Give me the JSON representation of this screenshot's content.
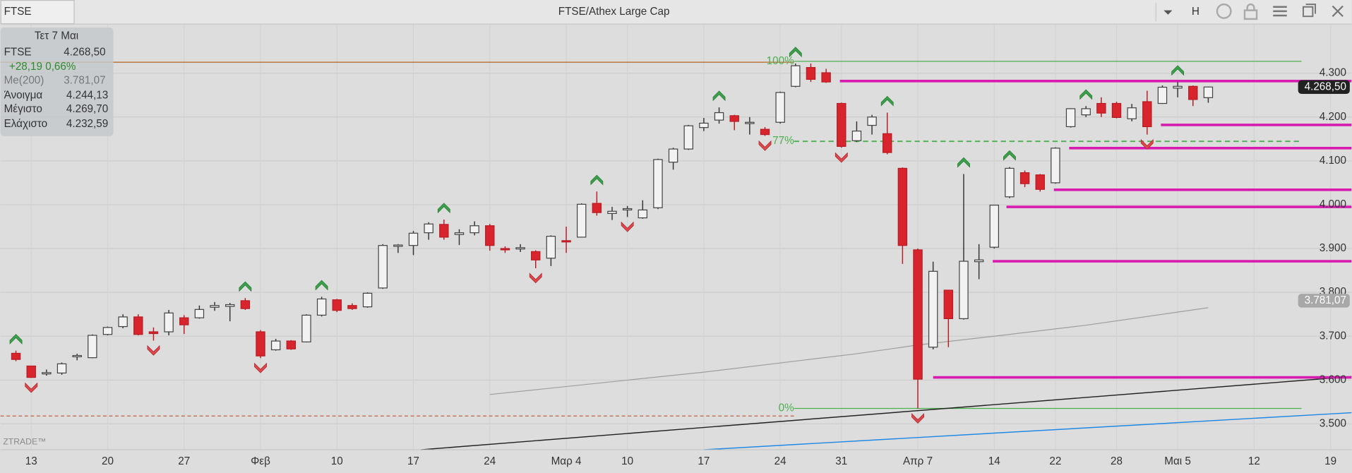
{
  "top_bar": {
    "symbol": "FTSE",
    "title": "FTSE/Athex Large Cap",
    "interval": "H"
  },
  "info_box": {
    "date": "Τετ 7 Μαι",
    "rows": [
      [
        "FTSE",
        "4.268,50"
      ],
      [
        "+28,19 0,66%"
      ],
      [
        "Me(200)",
        "3.781,07"
      ],
      [
        "Άνοιγμα",
        "4.244,13"
      ],
      [
        "Μέγιστο",
        "4.269,70"
      ],
      [
        "Ελάχιστο",
        "4.232,59"
      ]
    ]
  },
  "watermark": "ZTRADE™",
  "chart_data": {
    "type": "candlestick",
    "title": "FTSE/Athex Large Cap",
    "open": [
      3661,
      3632,
      3614,
      3616,
      3653,
      3651,
      3704,
      3722,
      3744,
      3710,
      3710,
      3742,
      3742,
      3766,
      3768,
      3781,
      3710,
      3669,
      3689,
      3687,
      3748,
      3783,
      3770,
      3767,
      3810,
      3905,
      3907,
      3936,
      3955,
      3932,
      3936,
      3952,
      3900,
      3899,
      3893,
      3878,
      3918,
      3926,
      4003,
      3980,
      3988,
      3970,
      3993,
      4097,
      4127,
      4176,
      4193,
      4203,
      4186,
      4172,
      4188,
      4270,
      4313,
      4301,
      4231,
      4146,
      4181,
      4162,
      4083,
      3897,
      3675,
      3805,
      3740,
      3870,
      3903,
      4018,
      4073,
      4068,
      4050,
      4178,
      4205,
      4231,
      4231,
      4196,
      4235,
      4231,
      4266,
      4270,
      4244.13
    ],
    "high": [
      3667,
      3632,
      3624,
      3640,
      3660,
      3704,
      3722,
      3750,
      3750,
      3720,
      3760,
      3748,
      3770,
      3778,
      3776,
      3787,
      3714,
      3694,
      3691,
      3750,
      3790,
      3785,
      3775,
      3800,
      3910,
      3910,
      3940,
      3960,
      3966,
      3944,
      3962,
      3956,
      3905,
      3910,
      3896,
      3930,
      3950,
      4003,
      4030,
      3995,
      3997,
      4010,
      4105,
      4130,
      4182,
      4198,
      4222,
      4205,
      4200,
      4177,
      4258,
      4322,
      4322,
      4310,
      4233,
      4190,
      4205,
      4210,
      4085,
      3900,
      3870,
      3805,
      4070,
      3910,
      4000,
      4086,
      4078,
      4070,
      4131,
      4220,
      4225,
      4245,
      4235,
      4230,
      4260,
      4272,
      4280,
      4272,
      4269.7
    ],
    "low": [
      3643,
      3605,
      3610,
      3612,
      3645,
      3650,
      3702,
      3718,
      3702,
      3690,
      3702,
      3705,
      3740,
      3758,
      3734,
      3760,
      3650,
      3667,
      3669,
      3686,
      3745,
      3755,
      3760,
      3765,
      3808,
      3890,
      3885,
      3920,
      3920,
      3908,
      3930,
      3895,
      3890,
      3892,
      3855,
      3860,
      3890,
      3925,
      3975,
      3965,
      3972,
      3968,
      3990,
      4080,
      4125,
      4168,
      4185,
      4170,
      4160,
      4157,
      4185,
      4268,
      4280,
      4278,
      4130,
      4143,
      4160,
      4115,
      3865,
      3535,
      3670,
      3675,
      3738,
      3830,
      3900,
      4015,
      4040,
      4030,
      4048,
      4176,
      4200,
      4200,
      4197,
      4190,
      4160,
      4230,
      4245,
      4225,
      4232.59
    ],
    "close": [
      3647,
      3606,
      3617,
      3637,
      3656,
      3702,
      3720,
      3744,
      3704,
      3706,
      3753,
      3726,
      3761,
      3770,
      3772,
      3763,
      3655,
      3689,
      3671,
      3748,
      3785,
      3759,
      3763,
      3798,
      3907,
      3908,
      3935,
      3956,
      3926,
      3936,
      3952,
      3907,
      3897,
      3902,
      3874,
      3928,
      3915,
      4001,
      3982,
      3985,
      3991,
      3988,
      4103,
      4127,
      4180,
      4186,
      4210,
      4190,
      4188,
      4160,
      4256,
      4317,
      4286,
      4280,
      4133,
      4168,
      4200,
      4119,
      3907,
      3602,
      3848,
      3740,
      3871,
      3874,
      3999,
      4083,
      4048,
      4035,
      4129,
      4219,
      4219,
      4209,
      4199,
      4221,
      4178,
      4268,
      4270,
      4240,
      4268.5
    ],
    "up_color": "#f2f2f2",
    "down_color": "#d8252d",
    "xlim": [
      -1.01,
      87.37
    ],
    "xticks": [
      {
        "value": 1,
        "label": "13"
      },
      {
        "value": 6,
        "label": "20"
      },
      {
        "value": 11,
        "label": "27"
      },
      {
        "value": 16,
        "label": "Φεβ"
      },
      {
        "value": 21,
        "label": "10"
      },
      {
        "value": 26,
        "label": "17"
      },
      {
        "value": 31,
        "label": "24"
      },
      {
        "value": 36,
        "label": "Μαρ 4"
      },
      {
        "value": 40,
        "label": "10"
      },
      {
        "value": 45,
        "label": "17"
      },
      {
        "value": 50,
        "label": "24"
      },
      {
        "value": 54,
        "label": "31"
      },
      {
        "value": 59,
        "label": "Απρ 7"
      },
      {
        "value": 64,
        "label": "14"
      },
      {
        "value": 68,
        "label": "22"
      },
      {
        "value": 72,
        "label": "28"
      },
      {
        "value": 76,
        "label": "Μαι 5"
      },
      {
        "value": 81,
        "label": "12"
      },
      {
        "value": 86,
        "label": "19"
      }
    ],
    "ylim": [
      3441,
      4408
    ],
    "yticks": [
      {
        "value": 3500,
        "label": "3.500"
      },
      {
        "value": 3600,
        "label": "3.600"
      },
      {
        "value": 3700,
        "label": "3.700"
      },
      {
        "value": 3800,
        "label": "3.800"
      },
      {
        "value": 3900,
        "label": "3.900"
      },
      {
        "value": 4000,
        "label": "4.000"
      },
      {
        "value": 4100,
        "label": "4.100"
      },
      {
        "value": 4200,
        "label": "4.200"
      },
      {
        "value": 4300,
        "label": "4.300"
      }
    ],
    "grid": true,
    "last_price": {
      "value": 4268.5,
      "label": "4.268,50"
    },
    "ma": {
      "color": "#9e9e9e",
      "x": [
        31,
        45,
        55,
        59,
        64,
        70,
        78
      ],
      "values": [
        3567,
        3618,
        3660,
        3680,
        3700,
        3725,
        3765
      ],
      "tag": {
        "value": 3781.07,
        "label": "3.781,07"
      }
    },
    "levels": {
      "color": "#d81bb0",
      "items": [
        {
          "value": 4282,
          "from": 53.9
        },
        {
          "value": 4182,
          "from": 74.9
        },
        {
          "value": 4129,
          "from": 68.9
        },
        {
          "value": 4034,
          "from": 67.9
        },
        {
          "value": 3995,
          "from": 64.8
        },
        {
          "value": 3871,
          "from": 63.9
        },
        {
          "value": 3606,
          "from": 60
        }
      ]
    },
    "fibonacci": {
      "color": "#4caf50",
      "from": 50,
      "to": 84.1,
      "items": [
        {
          "label": "100%",
          "value": 4327,
          "style": "solid"
        },
        {
          "label": "77%",
          "value": 4144.6,
          "style": "dashed"
        },
        {
          "label": "0%",
          "value": 3535.3,
          "style": "solid"
        }
      ]
    },
    "reference_lines": {
      "to": 50.9,
      "items": [
        {
          "value": 4325,
          "style": "solid",
          "color": "#b5651d"
        },
        {
          "value": 3518,
          "style": "dashed",
          "color": "#c0604a"
        }
      ]
    },
    "trendlines": [
      {
        "color": "#222222",
        "x": [
          26.5,
          87.37
        ],
        "values": [
          3441,
          3608
        ]
      },
      {
        "color": "#1e88e5",
        "x": [
          45,
          87.37
        ],
        "values": [
          3441,
          3525.5
        ]
      }
    ],
    "buy_signals": [
      0,
      15,
      20,
      28,
      38,
      46,
      51,
      57,
      62,
      65,
      70,
      76
    ],
    "sell_signals": [
      1,
      9,
      16,
      34,
      40,
      49,
      54,
      59,
      74
    ],
    "signal_colors": {
      "buy": "#3aa04a",
      "sell": "#e0474c"
    }
  }
}
